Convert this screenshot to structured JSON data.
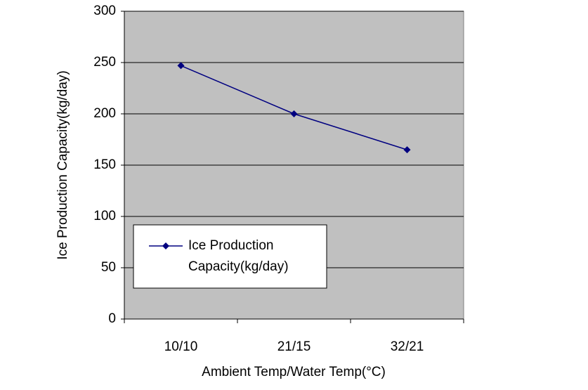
{
  "chart_data": {
    "type": "line",
    "x_label": "Ambient Temp/Water Temp(°C)",
    "y_label": "Ice Production Capacity(kg/day)",
    "categories": [
      "10/10",
      "21/15",
      "32/21"
    ],
    "series": [
      {
        "name": "Ice Production Capacity(kg/day)",
        "color": "#000080",
        "values": [
          247,
          200,
          165
        ]
      }
    ],
    "ylim": [
      0,
      300
    ],
    "yticks": [
      0,
      50,
      100,
      150,
      200,
      250,
      300
    ],
    "grid": true,
    "legend": "lower left",
    "plot_background": "#c0c0c0"
  }
}
